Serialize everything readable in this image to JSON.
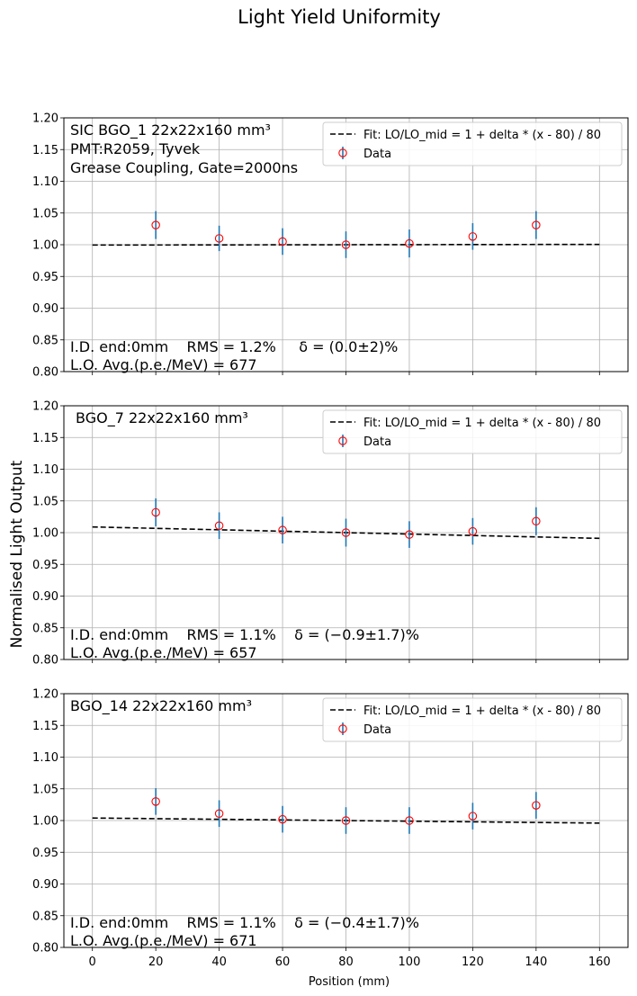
{
  "figure": {
    "title": "Light Yield Uniformity",
    "ylabel": "Normalised Light Output",
    "xlabel": "Position (mm)"
  },
  "legend": {
    "fit_label": "Fit: LO/LO_mid = 1 + delta * (x - 80) / 80",
    "data_label": "Data"
  },
  "colors": {
    "marker": "#ff0000",
    "errorbar": "#1f77b4",
    "fit": "#000000",
    "grid": "#b0b0b0"
  },
  "chart_data": [
    {
      "type": "scatter",
      "title_lines": [
        "SIC BGO_1 22x22x160 mm³",
        "PMT:R2059, Tyvek",
        "Grease Coupling, Gate=2000ns"
      ],
      "x": [
        20,
        40,
        60,
        80,
        100,
        120,
        140
      ],
      "y": [
        1.031,
        1.01,
        1.005,
        1.0,
        1.002,
        1.013,
        1.031
      ],
      "yerr": [
        0.022,
        0.02,
        0.021,
        0.021,
        0.022,
        0.021,
        0.022
      ],
      "fit": {
        "x": [
          0,
          160
        ],
        "y": [
          0.9995,
          1.0005
        ]
      },
      "stats_line1": "I.D. end:0mm    RMS = 1.2%     δ = (0.0±2)%",
      "stats_line2": "L.O. Avg.(p.e./MeV) = 677",
      "xlim": [
        -9,
        169
      ],
      "ylim": [
        0.8,
        1.2
      ],
      "xticks": [
        0,
        20,
        40,
        60,
        80,
        100,
        120,
        140,
        160
      ],
      "yticks": [
        "0.80",
        "0.85",
        "0.90",
        "0.95",
        "1.00",
        "1.05",
        "1.10",
        "1.15",
        "1.20"
      ],
      "grid": true,
      "legend_position": "top-right"
    },
    {
      "type": "scatter",
      "title_lines": [
        "BGO_7 22x22x160 mm³"
      ],
      "x": [
        20,
        40,
        60,
        80,
        100,
        120,
        140
      ],
      "y": [
        1.032,
        1.011,
        1.004,
        1.0,
        0.997,
        1.002,
        1.018
      ],
      "yerr": [
        0.022,
        0.021,
        0.021,
        0.022,
        0.021,
        0.021,
        0.022
      ],
      "fit": {
        "x": [
          0,
          160
        ],
        "y": [
          1.009,
          0.991
        ]
      },
      "stats_line1": "I.D. end:0mm    RMS = 1.1%    δ = (−0.9±1.7)%",
      "stats_line2": "L.O. Avg.(p.e./MeV) = 657",
      "xlim": [
        -9,
        169
      ],
      "ylim": [
        0.8,
        1.2
      ],
      "xticks": [
        0,
        20,
        40,
        60,
        80,
        100,
        120,
        140,
        160
      ],
      "yticks": [
        "0.80",
        "0.85",
        "0.90",
        "0.95",
        "1.00",
        "1.05",
        "1.10",
        "1.15",
        "1.20"
      ],
      "grid": true,
      "legend_position": "top-right"
    },
    {
      "type": "scatter",
      "title_lines": [
        "BGO_14 22x22x160 mm³"
      ],
      "x": [
        20,
        40,
        60,
        80,
        100,
        120,
        140
      ],
      "y": [
        1.03,
        1.011,
        1.002,
        1.0,
        1.0,
        1.007,
        1.024
      ],
      "yerr": [
        0.021,
        0.021,
        0.021,
        0.021,
        0.021,
        0.021,
        0.021
      ],
      "fit": {
        "x": [
          0,
          160
        ],
        "y": [
          1.004,
          0.996
        ]
      },
      "stats_line1": "I.D. end:0mm    RMS = 1.1%    δ = (−0.4±1.7)%",
      "stats_line2": "L.O. Avg.(p.e./MeV) = 671",
      "xlim": [
        -9,
        169
      ],
      "ylim": [
        0.8,
        1.2
      ],
      "xticks": [
        0,
        20,
        40,
        60,
        80,
        100,
        120,
        140,
        160
      ],
      "yticks": [
        "0.80",
        "0.85",
        "0.90",
        "0.95",
        "1.00",
        "1.05",
        "1.10",
        "1.15",
        "1.20"
      ],
      "grid": true,
      "legend_position": "top-right"
    }
  ]
}
